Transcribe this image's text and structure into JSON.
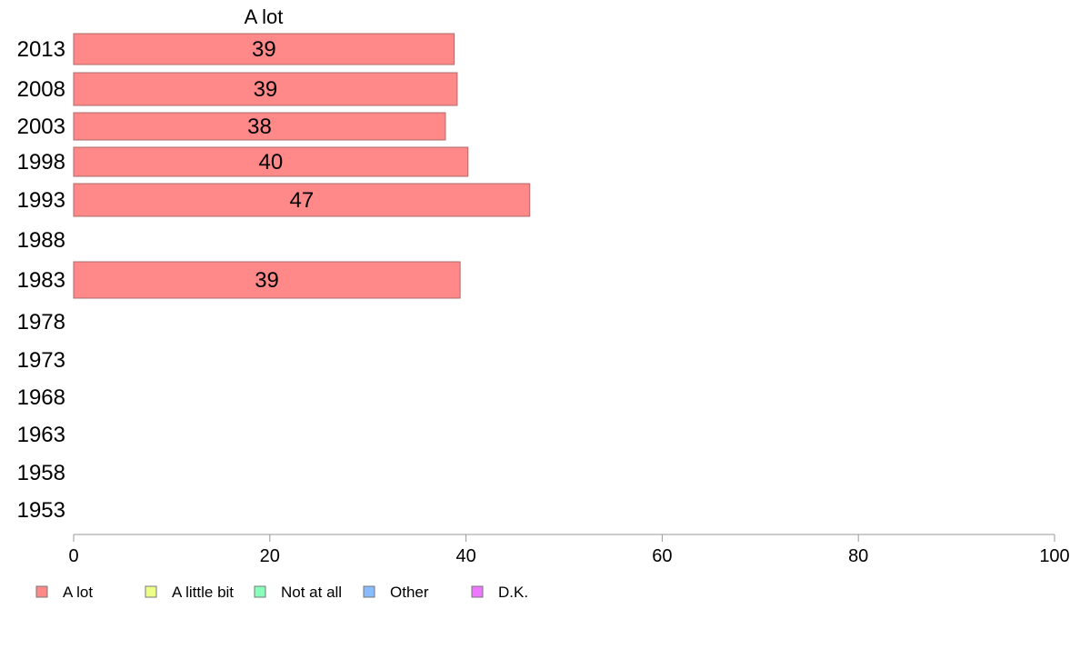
{
  "chart_data": {
    "type": "bar",
    "orientation": "horizontal",
    "title": "A lot",
    "categories": [
      "2013",
      "2008",
      "2003",
      "1998",
      "1993",
      "1988",
      "1983",
      "1978",
      "1973",
      "1968",
      "1963",
      "1958",
      "1953"
    ],
    "series": [
      {
        "name": "A lot",
        "color": "#ff8888",
        "values": [
          38.8,
          39.1,
          37.9,
          40.2,
          46.5,
          null,
          39.4,
          null,
          null,
          null,
          null,
          null,
          null
        ],
        "labels": [
          "39",
          "39",
          "38",
          "40",
          "47",
          "",
          "39",
          "",
          "",
          "",
          "",
          "",
          ""
        ]
      }
    ],
    "xlim": [
      0,
      100
    ],
    "xticks": [
      0,
      20,
      40,
      60,
      80,
      100
    ],
    "xtick_labels": [
      "0",
      "20",
      "40",
      "60",
      "80",
      "100"
    ],
    "grid": false,
    "legend": {
      "placement": "bottom-left",
      "items": [
        {
          "label": "A lot",
          "color": "#ff8888"
        },
        {
          "label": "A little bit",
          "color": "#eeff88"
        },
        {
          "label": "Not at all",
          "color": "#88ffbb"
        },
        {
          "label": "Other",
          "color": "#88bbff"
        },
        {
          "label": "D.K.",
          "color": "#ee77ff"
        }
      ]
    }
  }
}
